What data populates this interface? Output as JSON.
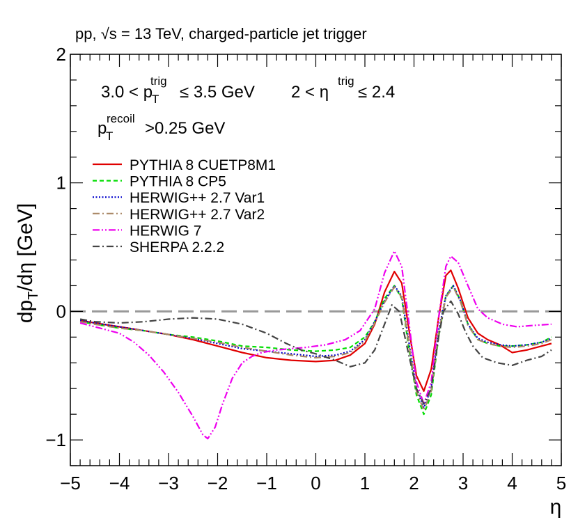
{
  "chart_data": {
    "type": "line",
    "header": "pp, √s = 13 TeV,  charged-particle jet trigger",
    "cut1": {
      "pt_lo": "3.0",
      "pt_hi": "3.5 GeV",
      "eta_lo": "2",
      "eta_hi": "2.4",
      "pt_sym": "p",
      "pt_sub": "T",
      "pt_sup": "trig",
      "eta_sym": "η",
      "eta_sup": "trig",
      "lt": "<",
      "le": "≤"
    },
    "cut2": {
      "sym": "p",
      "sub": "T",
      "sup": "recoil",
      "cond": ">0.25 GeV"
    },
    "ylabel": {
      "a": "dp",
      "sub": "T",
      "b": "/dη [GeV]"
    },
    "xlabel": "η",
    "xlim": [
      -5,
      5
    ],
    "ylim": [
      -1.2,
      2
    ],
    "x_ticks": [
      -5,
      -4,
      -3,
      -2,
      -1,
      0,
      1,
      2,
      3,
      4,
      5
    ],
    "x_tick_labels": [
      "−5",
      "−4",
      "−3",
      "−2",
      "−1",
      "0",
      "1",
      "2",
      "3",
      "4",
      "5"
    ],
    "y_ticks": [
      -1,
      0,
      1,
      2
    ],
    "y_tick_labels": [
      "−1",
      "0",
      "1",
      "2"
    ],
    "reference_line": 0,
    "legend_position": "top-left",
    "series": [
      {
        "name": "PYTHIA 8 CUETP8M1",
        "color": "#e00000",
        "style": "solid",
        "x": [
          -4.8,
          -4.5,
          -4.0,
          -3.5,
          -3.0,
          -2.5,
          -2.0,
          -1.5,
          -1.0,
          -0.5,
          0.0,
          0.4,
          0.7,
          1.0,
          1.2,
          1.4,
          1.6,
          1.75,
          1.9,
          2.05,
          2.2,
          2.35,
          2.5,
          2.65,
          2.75,
          2.9,
          3.1,
          3.3,
          3.5,
          3.75,
          4.0,
          4.3,
          4.6,
          4.8
        ],
        "y": [
          -0.07,
          -0.09,
          -0.12,
          -0.15,
          -0.18,
          -0.22,
          -0.27,
          -0.32,
          -0.36,
          -0.38,
          -0.39,
          -0.38,
          -0.34,
          -0.25,
          -0.1,
          0.15,
          0.31,
          0.22,
          -0.15,
          -0.5,
          -0.62,
          -0.45,
          -0.05,
          0.28,
          0.32,
          0.18,
          -0.05,
          -0.17,
          -0.22,
          -0.26,
          -0.32,
          -0.3,
          -0.27,
          -0.25
        ]
      },
      {
        "name": "PYTHIA 8 CP5",
        "color": "#00dd00",
        "style": "dashed",
        "x": [
          -4.8,
          -4.5,
          -4.0,
          -3.5,
          -3.0,
          -2.5,
          -2.0,
          -1.5,
          -1.0,
          -0.5,
          0.0,
          0.4,
          0.7,
          1.0,
          1.2,
          1.4,
          1.6,
          1.75,
          1.9,
          2.05,
          2.2,
          2.35,
          2.5,
          2.65,
          2.8,
          2.95,
          3.1,
          3.3,
          3.5,
          3.75,
          4.0,
          4.3,
          4.6,
          4.8
        ],
        "y": [
          -0.08,
          -0.1,
          -0.13,
          -0.15,
          -0.18,
          -0.2,
          -0.23,
          -0.27,
          -0.28,
          -0.3,
          -0.31,
          -0.3,
          -0.28,
          -0.2,
          -0.08,
          0.1,
          0.2,
          0.1,
          -0.3,
          -0.65,
          -0.8,
          -0.65,
          -0.2,
          0.12,
          0.2,
          0.08,
          -0.1,
          -0.22,
          -0.25,
          -0.27,
          -0.27,
          -0.26,
          -0.24,
          -0.2
        ]
      },
      {
        "name": "HERWIG++ 2.7 Var1",
        "color": "#0000cc",
        "style": "dotted",
        "x": [
          -4.8,
          -4.5,
          -4.0,
          -3.5,
          -3.0,
          -2.5,
          -2.0,
          -1.5,
          -1.0,
          -0.5,
          0.0,
          0.4,
          0.7,
          1.0,
          1.2,
          1.4,
          1.6,
          1.75,
          1.9,
          2.05,
          2.2,
          2.35,
          2.5,
          2.65,
          2.8,
          2.95,
          3.1,
          3.3,
          3.5,
          3.75,
          4.0,
          4.3,
          4.6,
          4.8
        ],
        "y": [
          -0.07,
          -0.09,
          -0.12,
          -0.15,
          -0.18,
          -0.21,
          -0.25,
          -0.29,
          -0.31,
          -0.33,
          -0.35,
          -0.34,
          -0.31,
          -0.22,
          -0.08,
          0.08,
          0.2,
          0.12,
          -0.25,
          -0.6,
          -0.75,
          -0.6,
          -0.15,
          0.12,
          0.2,
          0.08,
          -0.1,
          -0.21,
          -0.24,
          -0.26,
          -0.27,
          -0.26,
          -0.24,
          -0.21
        ]
      },
      {
        "name": "HERWIG++ 2.7 Var2",
        "color": "#aa8866",
        "style": "dashdot",
        "x": [
          -4.8,
          -4.5,
          -4.0,
          -3.5,
          -3.0,
          -2.5,
          -2.0,
          -1.5,
          -1.0,
          -0.5,
          0.0,
          0.4,
          0.7,
          1.0,
          1.2,
          1.4,
          1.6,
          1.75,
          1.9,
          2.05,
          2.2,
          2.35,
          2.5,
          2.65,
          2.8,
          2.95,
          3.1,
          3.3,
          3.5,
          3.75,
          4.0,
          4.3,
          4.6,
          4.8
        ],
        "y": [
          -0.08,
          -0.1,
          -0.13,
          -0.15,
          -0.18,
          -0.21,
          -0.24,
          -0.28,
          -0.31,
          -0.34,
          -0.36,
          -0.35,
          -0.32,
          -0.23,
          -0.09,
          0.07,
          0.19,
          0.11,
          -0.27,
          -0.62,
          -0.77,
          -0.62,
          -0.17,
          0.11,
          0.19,
          0.07,
          -0.11,
          -0.22,
          -0.25,
          -0.27,
          -0.28,
          -0.27,
          -0.25,
          -0.22
        ]
      },
      {
        "name": "HERWIG 7",
        "color": "#ee00ee",
        "style": "dashdotdot",
        "x": [
          -4.8,
          -4.5,
          -4.0,
          -3.7,
          -3.4,
          -3.1,
          -2.8,
          -2.5,
          -2.3,
          -2.2,
          -2.05,
          -1.9,
          -1.7,
          -1.5,
          -1.3,
          -1.1,
          -0.8,
          -0.5,
          -0.2,
          0.2,
          0.6,
          0.9,
          1.2,
          1.4,
          1.6,
          1.75,
          1.9,
          2.05,
          2.2,
          2.35,
          2.5,
          2.65,
          2.75,
          2.9,
          3.1,
          3.3,
          3.5,
          3.8,
          4.1,
          4.4,
          4.8
        ],
        "y": [
          -0.09,
          -0.12,
          -0.17,
          -0.24,
          -0.34,
          -0.47,
          -0.63,
          -0.82,
          -0.96,
          -0.99,
          -0.9,
          -0.72,
          -0.52,
          -0.4,
          -0.35,
          -0.32,
          -0.3,
          -0.29,
          -0.28,
          -0.26,
          -0.22,
          -0.15,
          0.02,
          0.3,
          0.47,
          0.35,
          -0.1,
          -0.55,
          -0.72,
          -0.55,
          -0.05,
          0.35,
          0.43,
          0.38,
          0.2,
          0.02,
          -0.05,
          -0.1,
          -0.12,
          -0.11,
          -0.1
        ]
      },
      {
        "name": "SHERPA 2.2.2",
        "color": "#444444",
        "style": "dashdot",
        "x": [
          -4.8,
          -4.5,
          -4.0,
          -3.5,
          -3.0,
          -2.5,
          -2.0,
          -1.5,
          -1.0,
          -0.6,
          -0.3,
          0.0,
          0.4,
          0.7,
          1.0,
          1.2,
          1.4,
          1.55,
          1.7,
          1.9,
          2.05,
          2.2,
          2.35,
          2.5,
          2.6,
          2.75,
          2.9,
          3.05,
          3.2,
          3.4,
          3.7,
          4.0,
          4.3,
          4.6,
          4.8
        ],
        "y": [
          -0.06,
          -0.08,
          -0.09,
          -0.08,
          -0.06,
          -0.05,
          -0.06,
          -0.1,
          -0.17,
          -0.25,
          -0.3,
          -0.33,
          -0.38,
          -0.43,
          -0.4,
          -0.3,
          -0.1,
          0.05,
          0.0,
          -0.35,
          -0.6,
          -0.72,
          -0.6,
          -0.2,
          0.0,
          0.08,
          -0.02,
          -0.16,
          -0.27,
          -0.36,
          -0.4,
          -0.42,
          -0.38,
          -0.35,
          -0.3
        ]
      }
    ]
  }
}
